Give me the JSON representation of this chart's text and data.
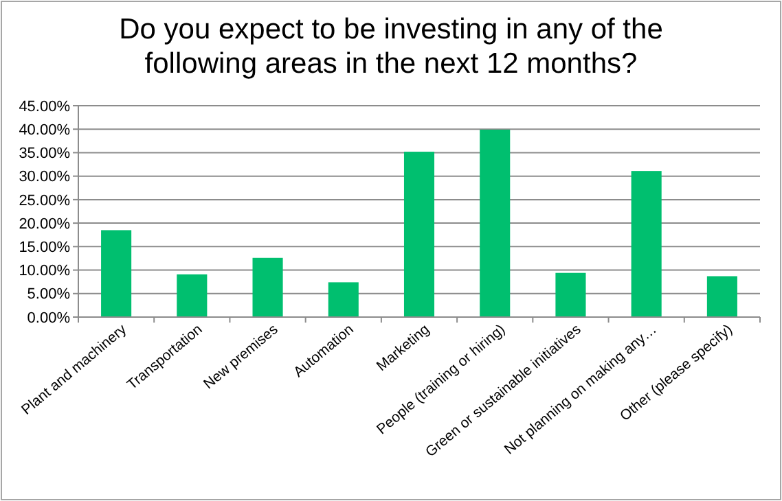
{
  "chart_data": {
    "type": "bar",
    "title": "Do you expect to be investing in any of the following areas in the next 12 months?",
    "categories": [
      "Plant and machinery",
      "Transportation",
      "New premises",
      "Automation",
      "Marketing",
      "People (training or hiring)",
      "Green or sustainable initiatives",
      "Not planning on making any…",
      "Other (please specify)"
    ],
    "values": [
      18.5,
      9.1,
      12.6,
      7.4,
      35.2,
      39.9,
      9.4,
      31.1,
      8.7
    ],
    "color": "#00bf6f",
    "ylim": [
      0,
      45
    ],
    "yticks": [
      {
        "value": 0,
        "label": "0.00%"
      },
      {
        "value": 5,
        "label": "5.00%"
      },
      {
        "value": 10,
        "label": "10.00%"
      },
      {
        "value": 15,
        "label": "15.00%"
      },
      {
        "value": 20,
        "label": "20.00%"
      },
      {
        "value": 25,
        "label": "25.00%"
      },
      {
        "value": 30,
        "label": "30.00%"
      },
      {
        "value": 35,
        "label": "35.00%"
      },
      {
        "value": 40,
        "label": "40.00%"
      },
      {
        "value": 45,
        "label": "45.00%"
      }
    ],
    "grid": "y"
  }
}
